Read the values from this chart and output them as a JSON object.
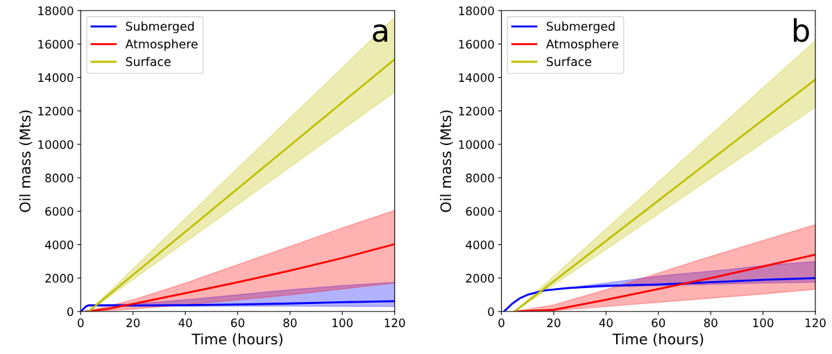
{
  "chart_data": [
    {
      "type": "line",
      "xlabel": "Time (hours)",
      "ylabel": "Oil mass (Mts)",
      "annotations": [
        "a"
      ],
      "xlim": [
        0,
        120
      ],
      "ylim": [
        0,
        18000
      ],
      "xticks": [
        0,
        20,
        40,
        60,
        80,
        100,
        120
      ],
      "yticks": [
        0,
        2000,
        4000,
        6000,
        8000,
        10000,
        12000,
        14000,
        16000,
        18000
      ],
      "grid": false,
      "legend": "top left",
      "series": [
        {
          "name": "Submerged",
          "color": "#0000ff",
          "x": [
            0,
            1,
            2,
            3,
            10,
            20,
            40,
            60,
            80,
            100,
            120
          ],
          "values": [
            0,
            150,
            300,
            370,
            370,
            360,
            380,
            420,
            480,
            560,
            620
          ],
          "lower": [
            0,
            150,
            280,
            320,
            320,
            310,
            310,
            320,
            320,
            310,
            300
          ],
          "upper": [
            0,
            160,
            320,
            400,
            420,
            450,
            700,
            1000,
            1300,
            1550,
            1750
          ]
        },
        {
          "name": "Atmosphere",
          "color": "#ff0000",
          "x": [
            2,
            10,
            20,
            40,
            60,
            80,
            100,
            120
          ],
          "values": [
            0,
            150,
            450,
            1100,
            1750,
            2450,
            3200,
            4030
          ],
          "lower": [
            0,
            50,
            150,
            400,
            700,
            1000,
            1350,
            1700
          ],
          "upper": [
            0,
            300,
            700,
            1700,
            2800,
            3900,
            5000,
            6050
          ]
        },
        {
          "name": "Surface",
          "color": "#bfbf00",
          "x": [
            3,
            120
          ],
          "values": [
            0,
            15090
          ],
          "lower": [
            0,
            13130
          ],
          "upper": [
            0,
            17600
          ]
        }
      ]
    },
    {
      "type": "line",
      "xlabel": "Time (hours)",
      "ylabel": "Oil mass (Mts)",
      "annotations": [
        "b"
      ],
      "xlim": [
        0,
        120
      ],
      "ylim": [
        0,
        18000
      ],
      "xticks": [
        0,
        20,
        40,
        60,
        80,
        100,
        120
      ],
      "yticks": [
        0,
        2000,
        4000,
        6000,
        8000,
        10000,
        12000,
        14000,
        16000,
        18000
      ],
      "grid": false,
      "legend": "top left",
      "series": [
        {
          "name": "Submerged",
          "color": "#0000ff",
          "x": [
            1,
            4,
            7,
            10,
            16,
            25,
            40,
            60,
            86,
            100,
            120
          ],
          "values": [
            0,
            450,
            790,
            1000,
            1250,
            1400,
            1540,
            1620,
            1790,
            1900,
            2000
          ],
          "lower": [
            0,
            450,
            790,
            1000,
            1250,
            1380,
            1470,
            1550,
            1650,
            1700,
            1750
          ],
          "upper": [
            0,
            450,
            790,
            1000,
            1250,
            1420,
            1700,
            2120,
            2500,
            2750,
            2990
          ]
        },
        {
          "name": "Atmosphere",
          "color": "#ff0000",
          "x": [
            5,
            20,
            40,
            60,
            80,
            100,
            120
          ],
          "values": [
            0,
            100,
            700,
            1350,
            2000,
            2700,
            3400
          ],
          "lower": [
            0,
            50,
            300,
            550,
            800,
            1050,
            1330
          ],
          "upper": [
            0,
            400,
            1300,
            2300,
            3300,
            4250,
            5200
          ]
        },
        {
          "name": "Surface",
          "color": "#bfbf00",
          "x": [
            5,
            120
          ],
          "values": [
            0,
            13880
          ],
          "lower": [
            0,
            12220
          ],
          "upper": [
            0,
            16210
          ]
        }
      ]
    }
  ]
}
